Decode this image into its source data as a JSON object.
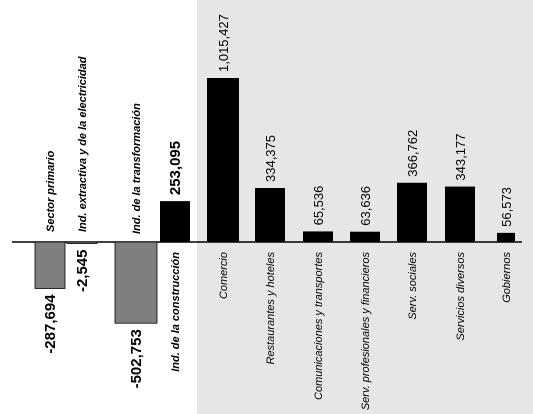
{
  "chart_data": {
    "type": "bar",
    "title": "",
    "xlabel": "",
    "ylabel": "",
    "ylim": [
      -520000,
      1060000
    ],
    "grid": false,
    "legend": "none",
    "categories": [
      "Sector primario",
      "Ind. extractiva y de la electricidad",
      "Ind. de la transformación",
      "Ind. de la construcción",
      "Comercio",
      "Restaurantes y hoteles",
      "Comunicaciones y transportes",
      "Serv. profesionales y financieros",
      "Serv. sociales",
      "Servicios diversos",
      "Gobiernos"
    ],
    "values": [
      -287694,
      -2545,
      -502753,
      253095,
      1015427,
      334375,
      65536,
      63636,
      366762,
      343177,
      56573
    ],
    "value_labels": [
      "-287,694",
      "-2,545",
      "-502,753",
      "253,095",
      "1,015,427",
      "334,375",
      "65,536",
      "63,636",
      "366,762",
      "343,177",
      "56,573"
    ],
    "colors": {
      "negative_bar": "#7f7f7f",
      "positive_bar": "#000000",
      "services_background": "#e6e6e6",
      "axis": "#000000"
    }
  }
}
